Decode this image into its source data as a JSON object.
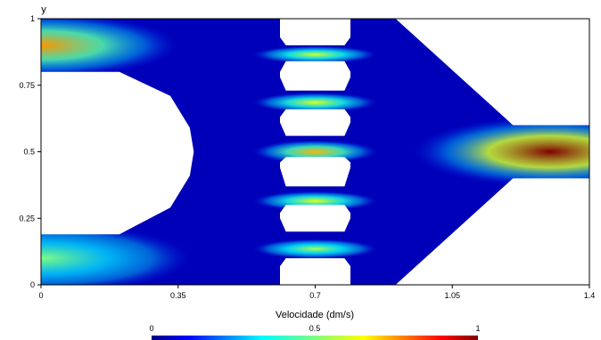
{
  "chart_data": {
    "type": "heatmap",
    "title": "",
    "xlabel": "",
    "ylabel": "y",
    "xlim": [
      0,
      1.4
    ],
    "ylim": [
      0,
      1
    ],
    "x_ticks": [
      0,
      0.35,
      0.7,
      1.05,
      1.4
    ],
    "x_tick_labels": [
      "0",
      "0.35",
      "0.7",
      "1.05",
      "1.4"
    ],
    "y_ticks": [
      0,
      0.25,
      0.5,
      0.75,
      1
    ],
    "y_tick_labels": [
      "0",
      "0.25",
      "0.5",
      "0.75",
      "1"
    ],
    "colorbar": {
      "label": "Velocidade (dm/s)",
      "min": 0,
      "max": 1,
      "tick_labels": [
        "0",
        "0.5",
        "1"
      ],
      "colormap": "jet"
    },
    "obstacles": [
      {
        "type": "half-disc",
        "polygon": [
          [
            0,
            0.19
          ],
          [
            0.2,
            0.19
          ],
          [
            0.33,
            0.29
          ],
          [
            0.38,
            0.41
          ],
          [
            0.39,
            0.5
          ],
          [
            0.38,
            0.59
          ],
          [
            0.33,
            0.71
          ],
          [
            0.2,
            0.8
          ],
          [
            0,
            0.8
          ]
        ]
      },
      {
        "type": "island",
        "polygon": [
          [
            0.61,
            1.0
          ],
          [
            0.61,
            0.93
          ],
          [
            0.625,
            0.9
          ],
          [
            0.775,
            0.9
          ],
          [
            0.79,
            0.93
          ],
          [
            0.79,
            1.0
          ]
        ]
      },
      {
        "type": "island",
        "polygon": [
          [
            0.61,
            0.78
          ],
          [
            0.61,
            0.8
          ],
          [
            0.625,
            0.84
          ],
          [
            0.775,
            0.84
          ],
          [
            0.79,
            0.8
          ],
          [
            0.79,
            0.78
          ],
          [
            0.775,
            0.73
          ],
          [
            0.625,
            0.73
          ]
        ]
      },
      {
        "type": "island",
        "polygon": [
          [
            0.61,
            0.61
          ],
          [
            0.61,
            0.63
          ],
          [
            0.625,
            0.66
          ],
          [
            0.775,
            0.66
          ],
          [
            0.79,
            0.63
          ],
          [
            0.79,
            0.61
          ],
          [
            0.775,
            0.56
          ],
          [
            0.625,
            0.56
          ]
        ]
      },
      {
        "type": "island",
        "polygon": [
          [
            0.61,
            0.44
          ],
          [
            0.61,
            0.46
          ],
          [
            0.625,
            0.48
          ],
          [
            0.775,
            0.48
          ],
          [
            0.79,
            0.46
          ],
          [
            0.79,
            0.44
          ],
          [
            0.775,
            0.37
          ],
          [
            0.625,
            0.37
          ]
        ]
      },
      {
        "type": "island",
        "polygon": [
          [
            0.61,
            0.25
          ],
          [
            0.61,
            0.27
          ],
          [
            0.625,
            0.3
          ],
          [
            0.775,
            0.3
          ],
          [
            0.79,
            0.27
          ],
          [
            0.79,
            0.25
          ],
          [
            0.775,
            0.2
          ],
          [
            0.625,
            0.2
          ]
        ]
      },
      {
        "type": "island",
        "polygon": [
          [
            0.61,
            0.0
          ],
          [
            0.61,
            0.07
          ],
          [
            0.625,
            0.1
          ],
          [
            0.775,
            0.1
          ],
          [
            0.79,
            0.07
          ],
          [
            0.79,
            0.0
          ]
        ]
      },
      {
        "type": "outer-top",
        "polygon": [
          [
            0.905,
            1.0
          ],
          [
            1.4,
            1.0
          ],
          [
            1.4,
            0.6
          ],
          [
            1.205,
            0.6
          ]
        ]
      },
      {
        "type": "outer-bottom",
        "polygon": [
          [
            0.905,
            0.0
          ],
          [
            1.205,
            0.4
          ],
          [
            1.4,
            0.4
          ],
          [
            1.4,
            0.0
          ]
        ]
      }
    ],
    "velocity_hotspots": [
      {
        "x": 0.0,
        "y": 0.9,
        "v": 0.75,
        "rx": 0.22,
        "ry": 0.055
      },
      {
        "x": 0.0,
        "y": 0.1,
        "v": 0.5,
        "rx": 0.24,
        "ry": 0.06
      },
      {
        "x": 0.7,
        "y": 0.865,
        "v": 0.6,
        "rx": 0.1,
        "ry": 0.015
      },
      {
        "x": 0.7,
        "y": 0.685,
        "v": 0.62,
        "rx": 0.1,
        "ry": 0.017
      },
      {
        "x": 0.7,
        "y": 0.5,
        "v": 0.72,
        "rx": 0.1,
        "ry": 0.02
      },
      {
        "x": 0.7,
        "y": 0.315,
        "v": 0.62,
        "rx": 0.1,
        "ry": 0.017
      },
      {
        "x": 0.7,
        "y": 0.135,
        "v": 0.55,
        "rx": 0.1,
        "ry": 0.017
      },
      {
        "x": 1.3,
        "y": 0.5,
        "v": 1.0,
        "rx": 0.22,
        "ry": 0.06
      }
    ]
  }
}
